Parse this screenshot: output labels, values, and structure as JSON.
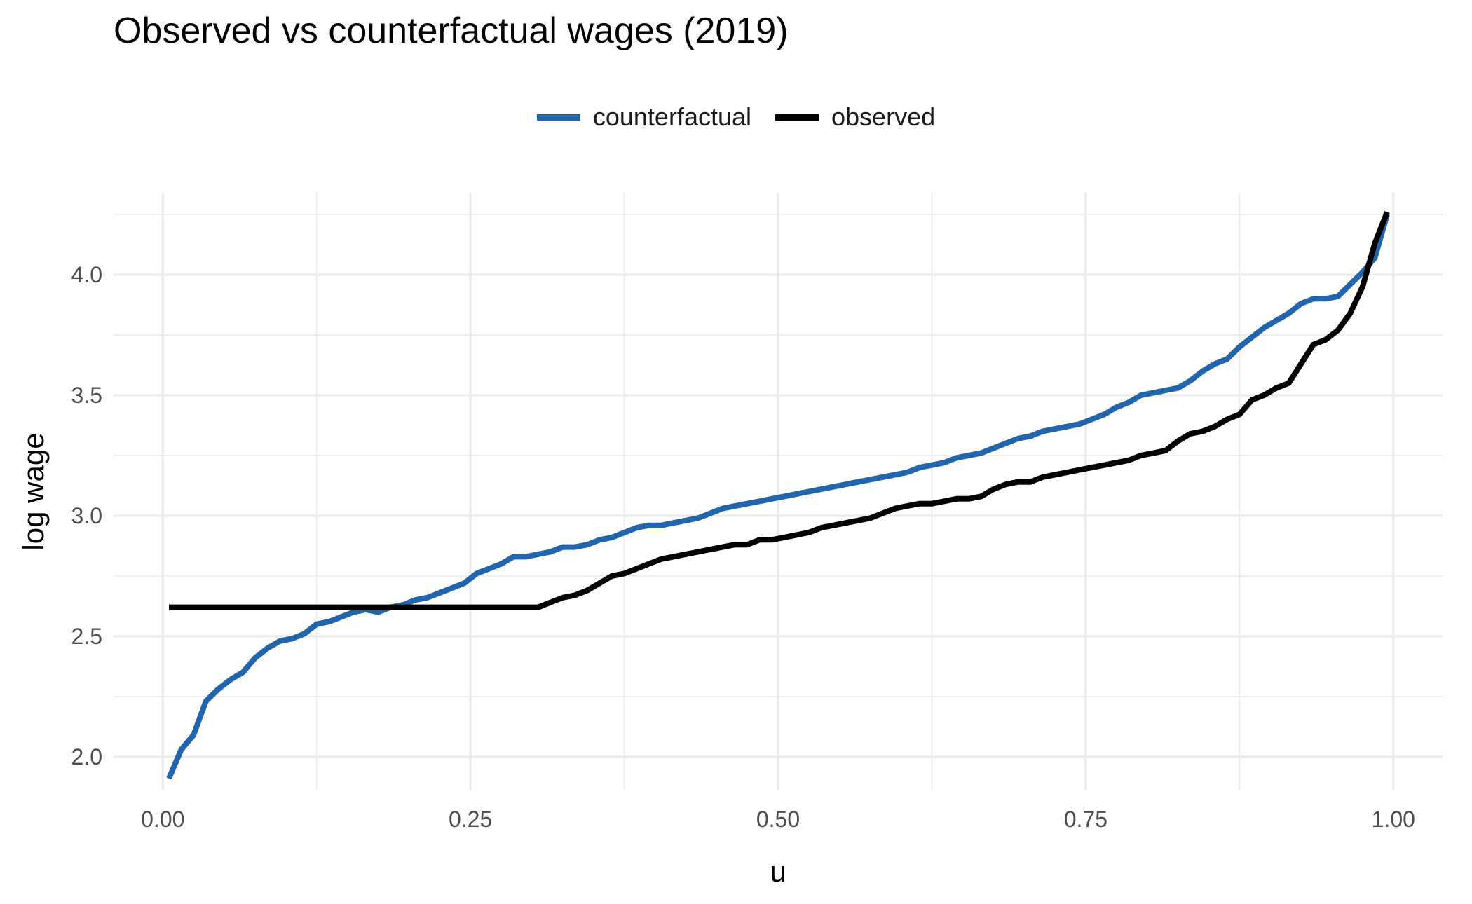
{
  "chart_data": {
    "type": "line",
    "title": "Observed vs counterfactual wages (2019)",
    "xlabel": "u",
    "ylabel": "log wage",
    "xlim": [
      -0.04,
      1.04
    ],
    "ylim": [
      1.86,
      4.34
    ],
    "x_ticks": [
      0.0,
      0.25,
      0.5,
      0.75,
      1.0
    ],
    "x_tick_labels": [
      "0.00",
      "0.25",
      "0.50",
      "0.75",
      "1.00"
    ],
    "y_ticks": [
      2.0,
      2.5,
      3.0,
      3.5,
      4.0
    ],
    "y_tick_labels": [
      "2.0",
      "2.5",
      "3.0",
      "3.5",
      "4.0"
    ],
    "grid": true,
    "legend_position": "top",
    "series": [
      {
        "name": "counterfactual",
        "color": "#2166AC",
        "x": [
          0.005,
          0.015,
          0.025,
          0.035,
          0.045,
          0.055,
          0.065,
          0.075,
          0.085,
          0.095,
          0.105,
          0.115,
          0.125,
          0.135,
          0.145,
          0.155,
          0.165,
          0.175,
          0.185,
          0.195,
          0.205,
          0.215,
          0.225,
          0.235,
          0.245,
          0.255,
          0.265,
          0.275,
          0.285,
          0.295,
          0.305,
          0.315,
          0.325,
          0.335,
          0.345,
          0.355,
          0.365,
          0.375,
          0.385,
          0.395,
          0.405,
          0.415,
          0.425,
          0.435,
          0.445,
          0.455,
          0.465,
          0.475,
          0.485,
          0.495,
          0.505,
          0.515,
          0.525,
          0.535,
          0.545,
          0.555,
          0.565,
          0.575,
          0.585,
          0.595,
          0.605,
          0.615,
          0.625,
          0.635,
          0.645,
          0.655,
          0.665,
          0.675,
          0.685,
          0.695,
          0.705,
          0.715,
          0.725,
          0.735,
          0.745,
          0.755,
          0.765,
          0.775,
          0.785,
          0.795,
          0.805,
          0.815,
          0.825,
          0.835,
          0.845,
          0.855,
          0.865,
          0.875,
          0.885,
          0.895,
          0.905,
          0.915,
          0.925,
          0.935,
          0.945,
          0.955,
          0.965,
          0.975,
          0.985,
          0.995
        ],
        "values": [
          1.91,
          2.03,
          2.09,
          2.23,
          2.28,
          2.32,
          2.35,
          2.41,
          2.45,
          2.48,
          2.49,
          2.51,
          2.55,
          2.56,
          2.58,
          2.6,
          2.61,
          2.6,
          2.62,
          2.63,
          2.65,
          2.66,
          2.68,
          2.7,
          2.72,
          2.76,
          2.78,
          2.8,
          2.83,
          2.83,
          2.84,
          2.85,
          2.87,
          2.87,
          2.88,
          2.9,
          2.91,
          2.93,
          2.95,
          2.96,
          2.96,
          2.97,
          2.98,
          2.99,
          3.01,
          3.03,
          3.04,
          3.05,
          3.06,
          3.07,
          3.08,
          3.09,
          3.1,
          3.11,
          3.12,
          3.13,
          3.14,
          3.15,
          3.16,
          3.17,
          3.18,
          3.2,
          3.21,
          3.22,
          3.24,
          3.25,
          3.26,
          3.28,
          3.3,
          3.32,
          3.33,
          3.35,
          3.36,
          3.37,
          3.38,
          3.4,
          3.42,
          3.45,
          3.47,
          3.5,
          3.51,
          3.52,
          3.53,
          3.56,
          3.6,
          3.63,
          3.65,
          3.7,
          3.74,
          3.78,
          3.81,
          3.84,
          3.88,
          3.9,
          3.9,
          3.91,
          3.96,
          4.01,
          4.07,
          4.25
        ]
      },
      {
        "name": "observed",
        "color": "#000000",
        "x": [
          0.005,
          0.015,
          0.025,
          0.035,
          0.045,
          0.055,
          0.065,
          0.075,
          0.085,
          0.095,
          0.105,
          0.115,
          0.125,
          0.135,
          0.145,
          0.155,
          0.165,
          0.175,
          0.185,
          0.195,
          0.205,
          0.215,
          0.225,
          0.235,
          0.245,
          0.255,
          0.265,
          0.275,
          0.285,
          0.295,
          0.305,
          0.315,
          0.325,
          0.335,
          0.345,
          0.355,
          0.365,
          0.375,
          0.385,
          0.395,
          0.405,
          0.415,
          0.425,
          0.435,
          0.445,
          0.455,
          0.465,
          0.475,
          0.485,
          0.495,
          0.505,
          0.515,
          0.525,
          0.535,
          0.545,
          0.555,
          0.565,
          0.575,
          0.585,
          0.595,
          0.605,
          0.615,
          0.625,
          0.635,
          0.645,
          0.655,
          0.665,
          0.675,
          0.685,
          0.695,
          0.705,
          0.715,
          0.725,
          0.735,
          0.745,
          0.755,
          0.765,
          0.775,
          0.785,
          0.795,
          0.805,
          0.815,
          0.825,
          0.835,
          0.845,
          0.855,
          0.865,
          0.875,
          0.885,
          0.895,
          0.905,
          0.915,
          0.925,
          0.935,
          0.945,
          0.955,
          0.965,
          0.975,
          0.985,
          0.995
        ],
        "values": [
          2.62,
          2.62,
          2.62,
          2.62,
          2.62,
          2.62,
          2.62,
          2.62,
          2.62,
          2.62,
          2.62,
          2.62,
          2.62,
          2.62,
          2.62,
          2.62,
          2.62,
          2.62,
          2.62,
          2.62,
          2.62,
          2.62,
          2.62,
          2.62,
          2.62,
          2.62,
          2.62,
          2.62,
          2.62,
          2.62,
          2.62,
          2.64,
          2.66,
          2.67,
          2.69,
          2.72,
          2.75,
          2.76,
          2.78,
          2.8,
          2.82,
          2.83,
          2.84,
          2.85,
          2.86,
          2.87,
          2.88,
          2.88,
          2.9,
          2.9,
          2.91,
          2.92,
          2.93,
          2.95,
          2.96,
          2.97,
          2.98,
          2.99,
          3.01,
          3.03,
          3.04,
          3.05,
          3.05,
          3.06,
          3.07,
          3.07,
          3.08,
          3.11,
          3.13,
          3.14,
          3.14,
          3.16,
          3.17,
          3.18,
          3.19,
          3.2,
          3.21,
          3.22,
          3.23,
          3.25,
          3.26,
          3.27,
          3.31,
          3.34,
          3.35,
          3.37,
          3.4,
          3.42,
          3.48,
          3.5,
          3.53,
          3.55,
          3.63,
          3.71,
          3.73,
          3.77,
          3.84,
          3.95,
          4.13,
          4.26
        ]
      }
    ]
  }
}
